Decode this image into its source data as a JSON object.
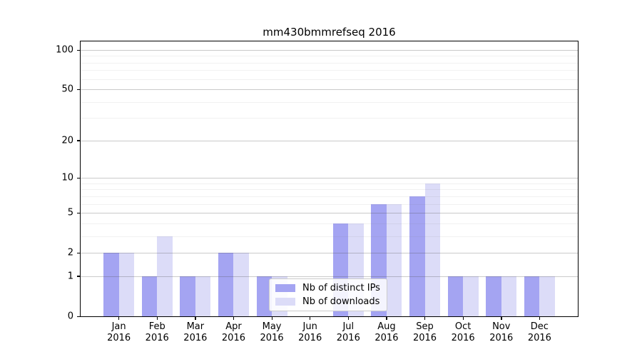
{
  "chart_data": {
    "type": "bar",
    "title": "mm430bmmrefseq 2016",
    "categories": [
      "Jan 2016",
      "Feb 2016",
      "Mar 2016",
      "Apr 2016",
      "May 2016",
      "Jun 2016",
      "Jul 2016",
      "Aug 2016",
      "Sep 2016",
      "Oct 2016",
      "Nov 2016",
      "Dec 2016"
    ],
    "series": [
      {
        "name": "Nb of distinct IPs",
        "color": "#a4a4f2",
        "values": [
          2,
          1,
          1,
          2,
          1,
          0,
          4,
          6,
          7,
          1,
          1,
          1
        ]
      },
      {
        "name": "Nb of downloads",
        "color": "#dcdcf8",
        "values": [
          2,
          3,
          1,
          2,
          1,
          0,
          4,
          6,
          9,
          1,
          1,
          1
        ]
      }
    ],
    "xlabel": "",
    "ylabel": "",
    "yscale": "log1p",
    "ylim": [
      0,
      116
    ],
    "y_tick_labels": [
      0,
      1,
      2,
      5,
      10,
      20,
      50,
      100
    ],
    "y_minor_gridlines": [
      3,
      4,
      6,
      7,
      8,
      9,
      30,
      40,
      60,
      70,
      80,
      90
    ],
    "grid": "major and minor horizontal gridlines, drawn over bars",
    "legend_position": "lower center"
  }
}
